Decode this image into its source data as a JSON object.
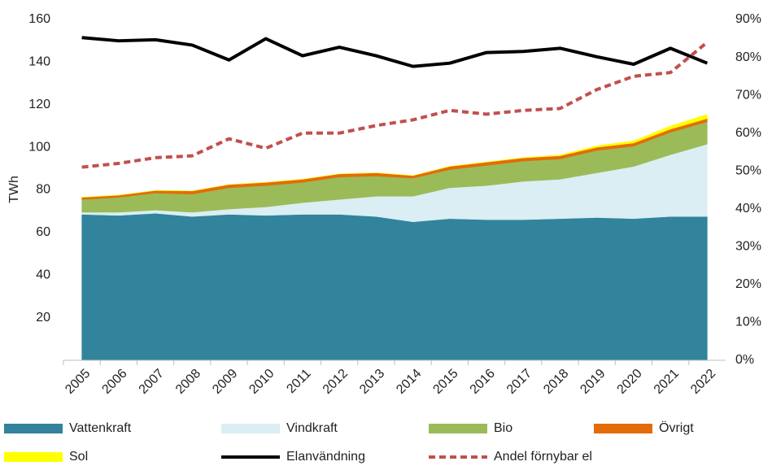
{
  "chart_data": {
    "type": "area",
    "y_label": "TWh",
    "categories": [
      "2005",
      "2006",
      "2007",
      "2008",
      "2009",
      "2010",
      "2011",
      "2012",
      "2013",
      "2014",
      "2015",
      "2016",
      "2017",
      "2018",
      "2019",
      "2020",
      "2021",
      "2022"
    ],
    "ylim": [
      0,
      160
    ],
    "yticks": [
      20,
      40,
      60,
      80,
      100,
      120,
      140,
      160
    ],
    "y2lim": [
      0,
      90
    ],
    "y2ticks": [
      {
        "value": 0,
        "label": "0%"
      },
      {
        "value": 10,
        "label": "10%"
      },
      {
        "value": 20,
        "label": "20%"
      },
      {
        "value": 30,
        "label": "30%"
      },
      {
        "value": 40,
        "label": "40%"
      },
      {
        "value": 50,
        "label": "50%"
      },
      {
        "value": 60,
        "label": "60%"
      },
      {
        "value": 70,
        "label": "70%"
      },
      {
        "value": 80,
        "label": "80%"
      },
      {
        "value": 90,
        "label": "90%"
      }
    ],
    "grid": false,
    "legend": "bottom",
    "series": [
      {
        "name": "Vattenkraft",
        "type": "area",
        "color": "#31849b",
        "values": [
          68.5,
          68,
          69,
          67.5,
          68.5,
          68,
          68.5,
          68.5,
          67.5,
          65,
          66.5,
          66,
          66,
          66.5,
          67,
          66.5,
          67.5,
          67.5
        ]
      },
      {
        "name": "Vindkraft",
        "type": "area",
        "color": "#daeef3",
        "values": [
          1,
          1.5,
          1.5,
          2,
          2.5,
          4,
          5.5,
          7,
          9.5,
          12,
          14.5,
          16,
          18,
          18.5,
          21,
          24.5,
          29,
          34
        ]
      },
      {
        "name": "Bio",
        "type": "area",
        "color": "#9bbb59",
        "values": [
          6,
          7,
          8,
          8.5,
          10,
          10,
          9.5,
          10.5,
          9.5,
          8.5,
          8.5,
          9.5,
          9.5,
          9.5,
          10.5,
          9.5,
          10.5,
          10.5
        ]
      },
      {
        "name": "Övrigt",
        "type": "area",
        "color": "#e36c09",
        "values": [
          1,
          1,
          1.2,
          1.5,
          1.5,
          1.5,
          1.5,
          1.5,
          1.5,
          1.2,
          1.5,
          1.5,
          1.5,
          1.5,
          1.5,
          1.5,
          1.5,
          1.5
        ]
      },
      {
        "name": "Sol",
        "type": "area",
        "color": "#ffff00",
        "values": [
          0,
          0,
          0,
          0,
          0,
          0,
          0,
          0,
          0,
          0,
          0.1,
          0.1,
          0.2,
          0.4,
          0.7,
          1,
          1.5,
          2
        ]
      },
      {
        "name": "Elanvändning",
        "type": "line",
        "color": "#000000",
        "values": [
          151.5,
          150,
          150.5,
          148,
          141,
          151,
          143,
          147,
          143,
          138,
          139.5,
          144.5,
          145,
          146.5,
          142.5,
          139,
          146.5,
          139.5
        ]
      },
      {
        "name": "Andel förnybar el",
        "type": "line",
        "axis": "y2",
        "dashed": true,
        "color": "#c0504d",
        "values": [
          51,
          52,
          53.5,
          54,
          58.5,
          56,
          60,
          60,
          62,
          63.5,
          66,
          65,
          66,
          66.5,
          71.5,
          75,
          76,
          84
        ]
      }
    ]
  }
}
